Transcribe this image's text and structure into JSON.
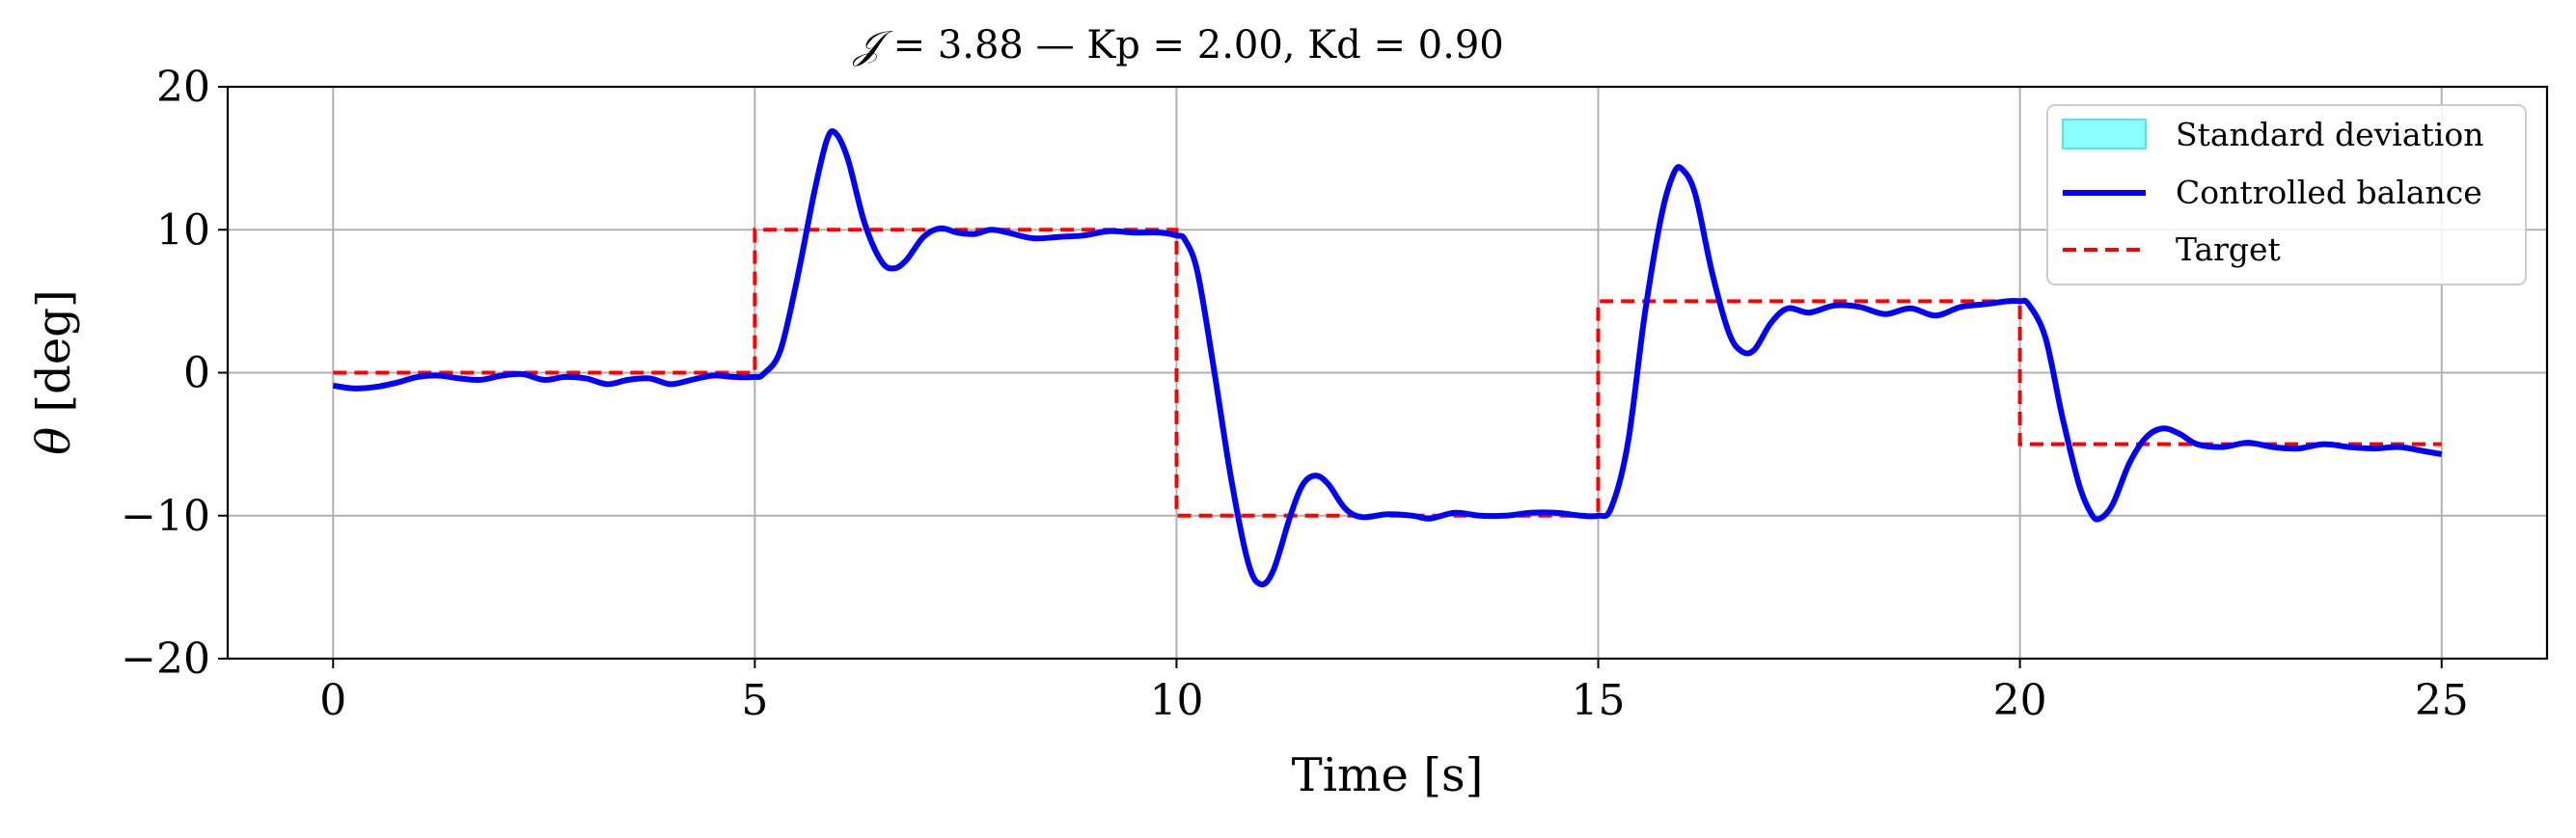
{
  "chart_data": {
    "type": "line",
    "title": {
      "symbol": "𝒥",
      "rest": " = 3.88 — Kp = 2.00, Kd = 0.90"
    },
    "xlabel": "Time [s]",
    "ylabel": {
      "symbol": "θ",
      "rest": " [deg]"
    },
    "xlim": [
      -1.25,
      26.25
    ],
    "ylim": [
      -20,
      20
    ],
    "xticks": [
      0,
      5,
      10,
      15,
      20,
      25
    ],
    "yticks": [
      -20,
      -10,
      0,
      10,
      20
    ],
    "xtick_labels": [
      "0",
      "5",
      "10",
      "15",
      "20",
      "25"
    ],
    "ytick_labels": [
      "−20",
      "−10",
      "0",
      "10",
      "20"
    ],
    "grid": true,
    "legend_position": "top-right",
    "series": [
      {
        "name": "Standard deviation",
        "kind": "band",
        "color": "#00ffff",
        "edge_color": "#4de8e8",
        "lower": [],
        "upper": []
      },
      {
        "name": "Controlled balance",
        "kind": "line",
        "color": "#0000ff",
        "points": [
          [
            0,
            -0.9
          ],
          [
            0.25,
            -1.1
          ],
          [
            0.5,
            -1.0
          ],
          [
            0.75,
            -0.7
          ],
          [
            1,
            -0.3
          ],
          [
            1.25,
            -0.2
          ],
          [
            1.5,
            -0.4
          ],
          [
            1.75,
            -0.5
          ],
          [
            2,
            -0.2
          ],
          [
            2.25,
            -0.1
          ],
          [
            2.5,
            -0.5
          ],
          [
            2.75,
            -0.3
          ],
          [
            3,
            -0.4
          ],
          [
            3.25,
            -0.8
          ],
          [
            3.5,
            -0.5
          ],
          [
            3.75,
            -0.4
          ],
          [
            4,
            -0.8
          ],
          [
            4.25,
            -0.5
          ],
          [
            4.5,
            -0.2
          ],
          [
            4.75,
            -0.3
          ],
          [
            5,
            -0.3
          ],
          [
            5.1,
            -0.1
          ],
          [
            5.3,
            1.5
          ],
          [
            5.5,
            6.5
          ],
          [
            5.7,
            12.5
          ],
          [
            5.85,
            16.2
          ],
          [
            5.95,
            16.8
          ],
          [
            6.1,
            15.0
          ],
          [
            6.3,
            10.5
          ],
          [
            6.5,
            7.8
          ],
          [
            6.65,
            7.3
          ],
          [
            6.8,
            7.9
          ],
          [
            7.0,
            9.5
          ],
          [
            7.2,
            10.1
          ],
          [
            7.4,
            9.8
          ],
          [
            7.6,
            9.7
          ],
          [
            7.8,
            10.0
          ],
          [
            8.0,
            9.8
          ],
          [
            8.3,
            9.4
          ],
          [
            8.6,
            9.5
          ],
          [
            8.9,
            9.6
          ],
          [
            9.2,
            9.9
          ],
          [
            9.5,
            9.8
          ],
          [
            9.8,
            9.8
          ],
          [
            10.0,
            9.6
          ],
          [
            10.1,
            9.3
          ],
          [
            10.25,
            7.0
          ],
          [
            10.45,
            0.0
          ],
          [
            10.65,
            -7.5
          ],
          [
            10.85,
            -13.3
          ],
          [
            11.0,
            -14.8
          ],
          [
            11.15,
            -13.8
          ],
          [
            11.35,
            -10.0
          ],
          [
            11.5,
            -7.8
          ],
          [
            11.65,
            -7.2
          ],
          [
            11.8,
            -7.8
          ],
          [
            12.0,
            -9.5
          ],
          [
            12.2,
            -10.1
          ],
          [
            12.5,
            -9.9
          ],
          [
            12.8,
            -10.0
          ],
          [
            13.0,
            -10.2
          ],
          [
            13.3,
            -9.8
          ],
          [
            13.6,
            -10.0
          ],
          [
            13.9,
            -10.0
          ],
          [
            14.2,
            -9.8
          ],
          [
            14.5,
            -9.8
          ],
          [
            14.8,
            -10.0
          ],
          [
            15.0,
            -10.0
          ],
          [
            15.15,
            -9.5
          ],
          [
            15.35,
            -5.0
          ],
          [
            15.55,
            4.0
          ],
          [
            15.75,
            11.0
          ],
          [
            15.9,
            14.0
          ],
          [
            16.0,
            14.2
          ],
          [
            16.15,
            12.5
          ],
          [
            16.35,
            7.0
          ],
          [
            16.55,
            2.8
          ],
          [
            16.7,
            1.5
          ],
          [
            16.85,
            1.6
          ],
          [
            17.05,
            3.5
          ],
          [
            17.25,
            4.5
          ],
          [
            17.5,
            4.2
          ],
          [
            17.8,
            4.7
          ],
          [
            18.1,
            4.6
          ],
          [
            18.4,
            4.1
          ],
          [
            18.7,
            4.5
          ],
          [
            19.0,
            4.0
          ],
          [
            19.3,
            4.6
          ],
          [
            19.6,
            4.8
          ],
          [
            19.85,
            5.0
          ],
          [
            20.0,
            5.0
          ],
          [
            20.1,
            4.8
          ],
          [
            20.3,
            2.5
          ],
          [
            20.5,
            -3.0
          ],
          [
            20.7,
            -7.8
          ],
          [
            20.85,
            -9.9
          ],
          [
            20.95,
            -10.2
          ],
          [
            21.1,
            -9.2
          ],
          [
            21.3,
            -6.3
          ],
          [
            21.5,
            -4.5
          ],
          [
            21.7,
            -3.9
          ],
          [
            21.9,
            -4.3
          ],
          [
            22.1,
            -5.0
          ],
          [
            22.4,
            -5.2
          ],
          [
            22.7,
            -4.9
          ],
          [
            23.0,
            -5.2
          ],
          [
            23.3,
            -5.3
          ],
          [
            23.6,
            -5.0
          ],
          [
            23.9,
            -5.2
          ],
          [
            24.2,
            -5.3
          ],
          [
            24.5,
            -5.2
          ],
          [
            24.8,
            -5.5
          ],
          [
            25.0,
            -5.7
          ]
        ]
      },
      {
        "name": "Target",
        "kind": "step",
        "color": "#ff0000",
        "points": [
          [
            0,
            0
          ],
          [
            5,
            0
          ],
          [
            5,
            10
          ],
          [
            10,
            10
          ],
          [
            10,
            -10
          ],
          [
            15,
            -10
          ],
          [
            15,
            5
          ],
          [
            20,
            5
          ],
          [
            20,
            -5
          ],
          [
            25,
            -5
          ]
        ]
      }
    ]
  }
}
